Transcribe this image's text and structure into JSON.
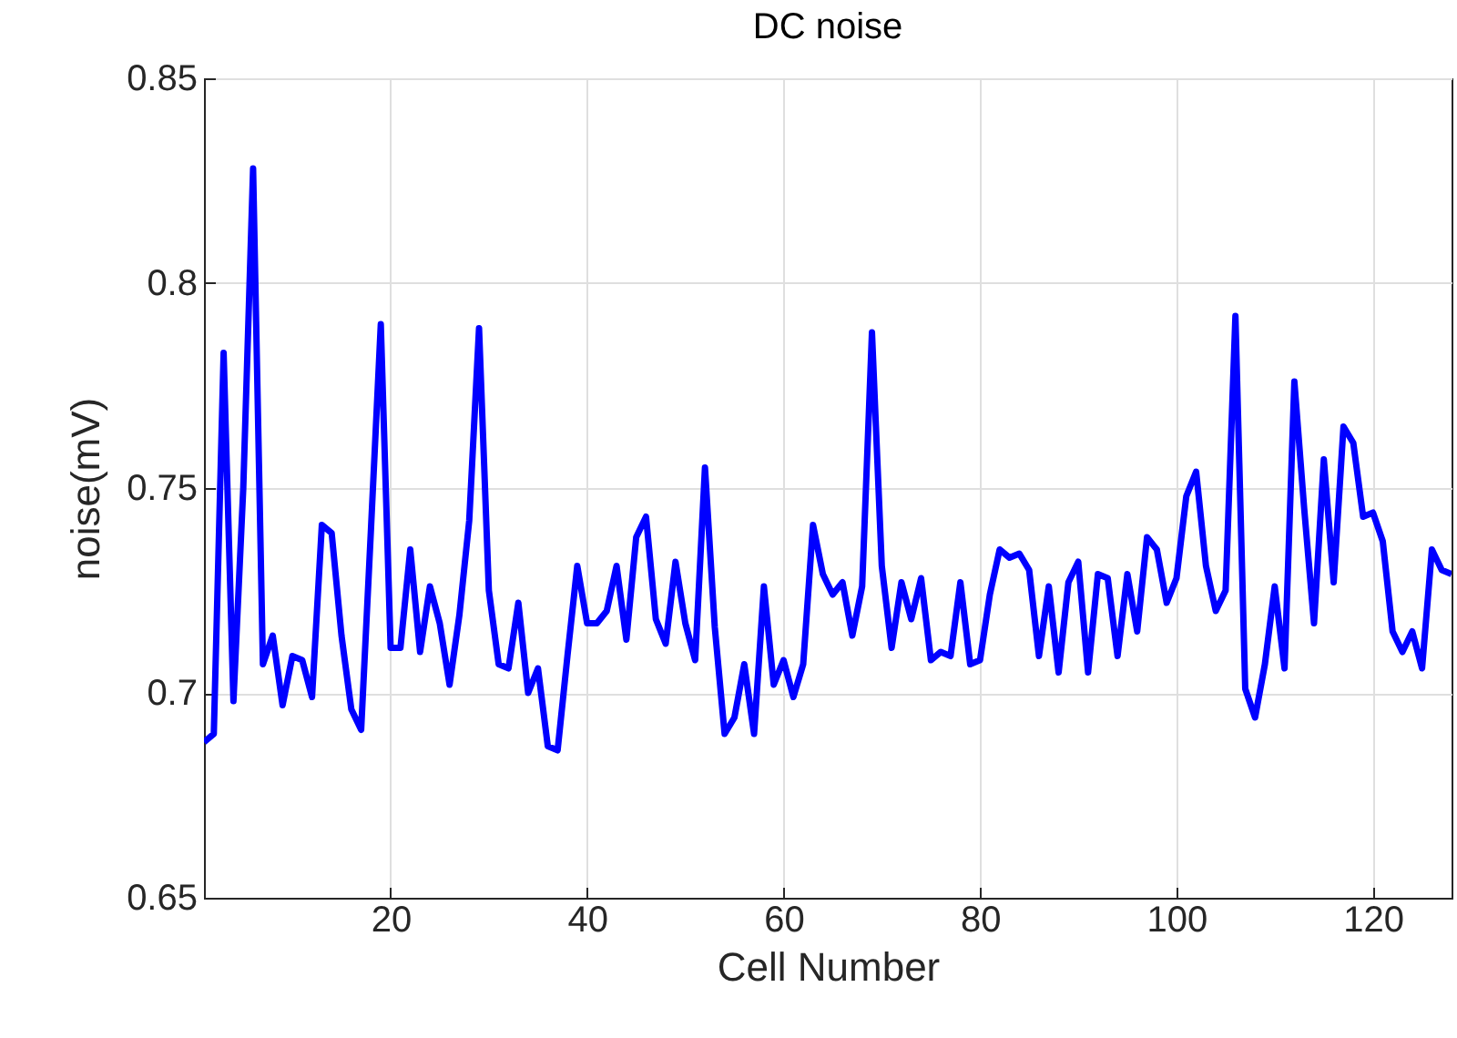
{
  "chart_data": {
    "type": "line",
    "title": "DC noise",
    "xlabel": "Cell Number",
    "ylabel": "noise(mV)",
    "x": [
      1,
      2,
      3,
      4,
      5,
      6,
      7,
      8,
      9,
      10,
      11,
      12,
      13,
      14,
      15,
      16,
      17,
      18,
      19,
      20,
      21,
      22,
      23,
      24,
      25,
      26,
      27,
      28,
      29,
      30,
      31,
      32,
      33,
      34,
      35,
      36,
      37,
      38,
      39,
      40,
      41,
      42,
      43,
      44,
      45,
      46,
      47,
      48,
      49,
      50,
      51,
      52,
      53,
      54,
      55,
      56,
      57,
      58,
      59,
      60,
      61,
      62,
      63,
      64,
      65,
      66,
      67,
      68,
      69,
      70,
      71,
      72,
      73,
      74,
      75,
      76,
      77,
      78,
      79,
      80,
      81,
      82,
      83,
      84,
      85,
      86,
      87,
      88,
      89,
      90,
      91,
      92,
      93,
      94,
      95,
      96,
      97,
      98,
      99,
      100,
      101,
      102,
      103,
      104,
      105,
      106,
      107,
      108,
      109,
      110,
      111,
      112,
      113,
      114,
      115,
      116,
      117,
      118,
      119,
      120,
      121,
      122,
      123,
      124,
      125,
      126,
      127,
      128
    ],
    "series": [
      {
        "color": "#0000ff",
        "values": [
          0.688,
          0.69,
          0.783,
          0.698,
          0.75,
          0.828,
          0.707,
          0.714,
          0.697,
          0.709,
          0.708,
          0.699,
          0.741,
          0.739,
          0.714,
          0.696,
          0.691,
          0.74,
          0.79,
          0.711,
          0.711,
          0.735,
          0.71,
          0.726,
          0.717,
          0.702,
          0.719,
          0.742,
          0.789,
          0.725,
          0.707,
          0.706,
          0.722,
          0.7,
          0.706,
          0.687,
          0.686,
          0.709,
          0.731,
          0.717,
          0.717,
          0.72,
          0.731,
          0.713,
          0.738,
          0.743,
          0.718,
          0.712,
          0.732,
          0.717,
          0.708,
          0.755,
          0.716,
          0.69,
          0.694,
          0.707,
          0.69,
          0.726,
          0.702,
          0.708,
          0.699,
          0.707,
          0.741,
          0.729,
          0.724,
          0.727,
          0.714,
          0.726,
          0.788,
          0.731,
          0.711,
          0.727,
          0.718,
          0.728,
          0.708,
          0.71,
          0.709,
          0.727,
          0.707,
          0.708,
          0.724,
          0.735,
          0.733,
          0.734,
          0.73,
          0.709,
          0.726,
          0.705,
          0.727,
          0.732,
          0.705,
          0.729,
          0.728,
          0.709,
          0.729,
          0.715,
          0.738,
          0.735,
          0.722,
          0.728,
          0.748,
          0.754,
          0.731,
          0.72,
          0.725,
          0.792,
          0.701,
          0.694,
          0.707,
          0.726,
          0.706,
          0.776,
          0.745,
          0.717,
          0.757,
          0.727,
          0.765,
          0.761,
          0.743,
          0.744,
          0.737,
          0.715,
          0.71,
          0.715,
          0.706,
          0.735,
          0.73,
          0.729
        ]
      }
    ],
    "xlim": [
      1,
      128
    ],
    "xticks": [
      20,
      40,
      60,
      80,
      100,
      120
    ],
    "ylim": [
      0.65,
      0.85
    ],
    "yticks": [
      0.65,
      0.7,
      0.75,
      0.8,
      0.85
    ],
    "grid": true,
    "line_style": "solid",
    "marker": "none"
  }
}
